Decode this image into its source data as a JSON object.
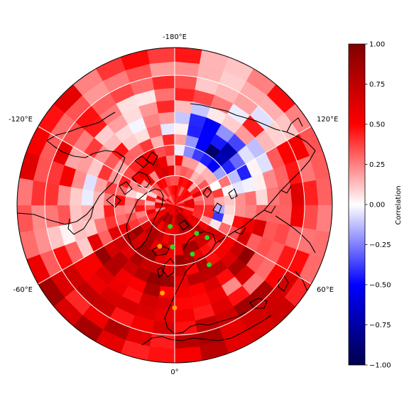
{
  "map": {
    "projection": "north-polar-stereographic",
    "longitude_labels": [
      {
        "text": "-180°E",
        "lon": 180
      },
      {
        "text": "120°E",
        "lon": 120
      },
      {
        "text": "60°E",
        "lon": 60
      },
      {
        "text": "0°",
        "lon": 0
      },
      {
        "text": "-60°E",
        "lon": -60
      },
      {
        "text": "-120°E",
        "lon": -120
      }
    ],
    "graticule_longitudes": [
      0,
      60,
      120,
      180,
      -120,
      -60
    ],
    "graticule_latitudes": [
      30,
      60,
      75
    ],
    "colormap": "seismic",
    "colors": {
      "negative": "#00004c",
      "zero": "#ffffff",
      "positive": "#800000",
      "coastline": "#000000",
      "grid": "#ffffff",
      "site_green": "#22dd22",
      "site_orange": "#ffa500"
    },
    "sites": [
      {
        "type": "green",
        "lat": 67.0,
        "lon": -45.0
      },
      {
        "type": "green",
        "lat": 72.0,
        "lon": -38.0
      },
      {
        "type": "green",
        "lat": 79.0,
        "lon": 12.0
      },
      {
        "type": "green",
        "lat": 64.0,
        "lon": -20.0
      },
      {
        "type": "green",
        "lat": 56.0,
        "lon": -30.0
      },
      {
        "type": "green",
        "lat": 69.0,
        "lon": 3.0
      },
      {
        "type": "orange",
        "lat": 68.0,
        "lon": 20.0
      },
      {
        "type": "orange",
        "lat": 47.0,
        "lon": 8.0
      },
      {
        "type": "orange",
        "lat": 41.0,
        "lon": 0.0
      }
    ]
  },
  "colorbar": {
    "label": "Correlation",
    "min": -1.0,
    "max": 1.0,
    "ticks": [
      "1.00",
      "0.75",
      "0.50",
      "0.25",
      "0.00",
      "−0.25",
      "−0.50",
      "−0.75",
      "−1.00"
    ]
  }
}
